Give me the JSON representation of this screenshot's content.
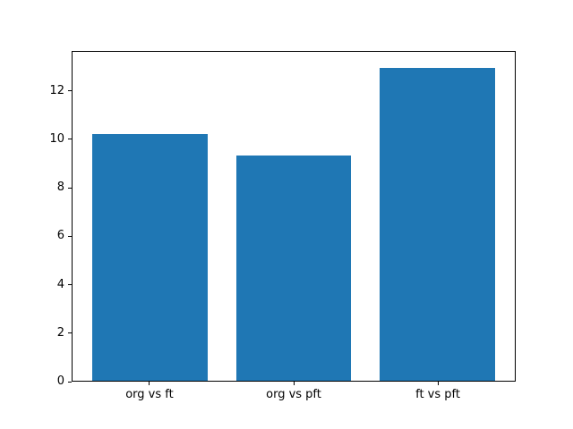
{
  "figure": {
    "background_color": "#ffffff",
    "frame_color": "#000000"
  },
  "chart_data": {
    "type": "bar",
    "categories": [
      "org vs ft",
      "org vs pft",
      "ft vs pft"
    ],
    "values": [
      10.25,
      9.35,
      13.0
    ],
    "title": "",
    "xlabel": "",
    "ylabel": "",
    "yticks": [
      0,
      2,
      4,
      6,
      8,
      10,
      12
    ],
    "ylim": [
      0,
      13.65
    ],
    "xlim": [
      -0.54,
      2.54
    ],
    "bar_width": 0.8,
    "bar_color": "#1f77b4",
    "grid": false,
    "legend": null
  }
}
